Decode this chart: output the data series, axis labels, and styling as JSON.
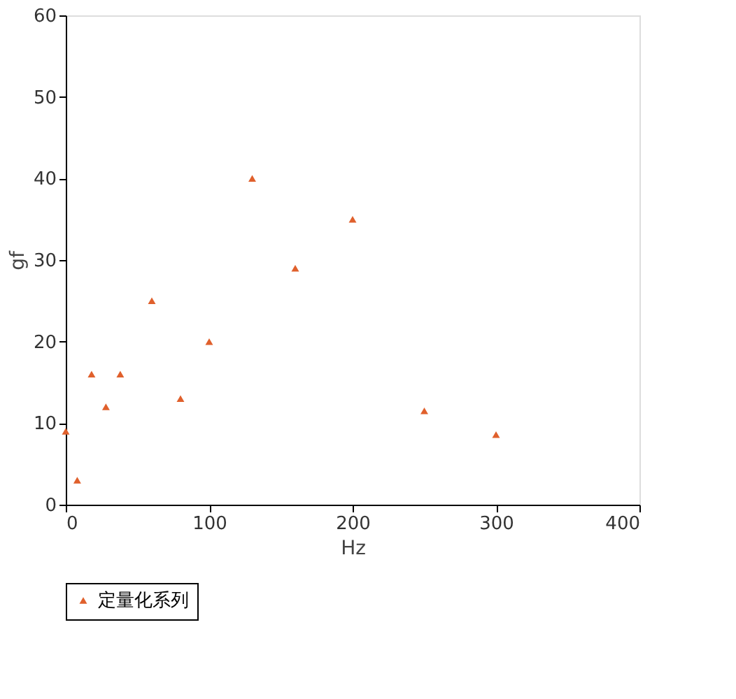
{
  "chart_data": {
    "type": "scatter",
    "xlabel": "Hz",
    "ylabel": "gf",
    "series": [
      {
        "name": "定量化系列",
        "color": "#e0602c",
        "x": [
          0,
          8,
          18,
          28,
          38,
          60,
          80,
          100,
          130,
          160,
          200,
          250,
          300
        ],
        "values": [
          9,
          3,
          16,
          12,
          16,
          25,
          13,
          20,
          40,
          29,
          35,
          11.5,
          8.6
        ]
      }
    ],
    "marker": "triangle",
    "xlim": [
      0,
      400
    ],
    "xticks": [
      0,
      100,
      200,
      300,
      400
    ],
    "ylim": [
      0,
      60
    ],
    "yticks": [
      0,
      10,
      20,
      30,
      40,
      50,
      60
    ],
    "grid": false,
    "legend": "bottom"
  }
}
